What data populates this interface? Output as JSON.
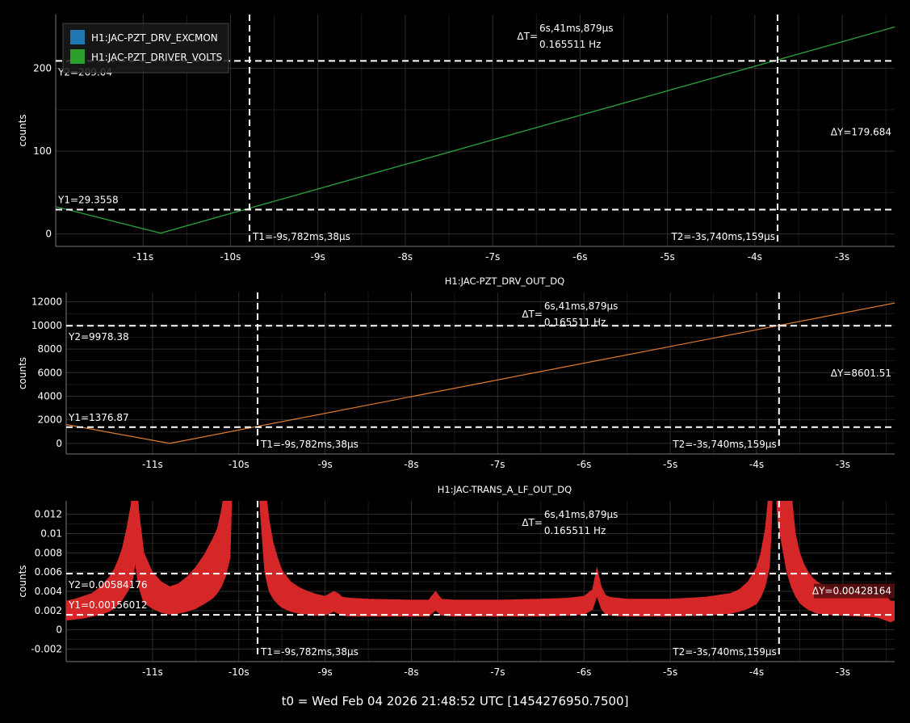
{
  "footer": "t0 = Wed Feb 04 2026 21:48:52 UTC [1454276950.7500]",
  "chart_data": [
    {
      "type": "line",
      "title": "",
      "ylabel": "counts",
      "xlabel": "",
      "xlim": [
        -12.0,
        -2.4
      ],
      "ylim": [
        -15,
        265
      ],
      "xticks": [
        -11,
        -10,
        -9,
        -8,
        -7,
        -6,
        -5,
        -4,
        -3
      ],
      "xtick_labels": [
        "-11s",
        "-10s",
        "-9s",
        "-8s",
        "-7s",
        "-6s",
        "-5s",
        "-4s",
        "-3s"
      ],
      "yticks": [
        0,
        100,
        200
      ],
      "ytick_labels": [
        "0",
        "100",
        "200"
      ],
      "legend": {
        "placement": "top-left",
        "entries": [
          {
            "name": "H1:JAC-PZT_DRV_EXCMON",
            "color": "#1f77b4"
          },
          {
            "name": "H1:JAC-PZT_DRIVER_VOLTS",
            "color": "#2ca02c"
          }
        ]
      },
      "series": [
        {
          "name": "H1:JAC-PZT_DRV_EXCMON",
          "color": "#1f77b4",
          "x": [
            -12.0,
            -10.8,
            -2.4
          ],
          "y": [
            33,
            1,
            250
          ]
        },
        {
          "name": "H1:JAC-PZT_DRIVER_VOLTS",
          "color": "#2ca02c",
          "x": [
            -12.0,
            -10.8,
            -2.4
          ],
          "y": [
            33,
            1,
            250
          ]
        }
      ],
      "cursors": {
        "t1": -9.782,
        "t2": -3.74,
        "y1": 29.3558,
        "y2": 209.04,
        "t1_label": "T1=-9s,782ms,38µs",
        "t2_label": "T2=-3s,740ms,159µs",
        "y1_label": "Y1=29.3558",
        "y2_label": "Y2=209.04",
        "dy_label": "ΔY=179.684",
        "dt_prefix": "ΔT=",
        "dt_label": "6s,41ms,879µs",
        "freq_label": "0.165511 Hz"
      }
    },
    {
      "type": "line",
      "title": "H1:JAC-PZT_DRV_OUT_DQ",
      "ylabel": "counts",
      "xlabel": "",
      "xlim": [
        -12.0,
        -2.4
      ],
      "ylim": [
        -900,
        12800
      ],
      "xticks": [
        -11,
        -10,
        -9,
        -8,
        -7,
        -6,
        -5,
        -4,
        -3
      ],
      "xtick_labels": [
        "-11s",
        "-10s",
        "-9s",
        "-8s",
        "-7s",
        "-6s",
        "-5s",
        "-4s",
        "-3s"
      ],
      "yticks": [
        0,
        2000,
        4000,
        6000,
        8000,
        10000,
        12000
      ],
      "ytick_labels": [
        "0",
        "2000",
        "4000",
        "6000",
        "8000",
        "10000",
        "12000"
      ],
      "series": [
        {
          "name": "H1:JAC-PZT_DRV_OUT_DQ",
          "color": "#e07a2e",
          "x": [
            -12.0,
            -10.8,
            -2.4
          ],
          "y": [
            1600,
            0,
            11900
          ]
        }
      ],
      "cursors": {
        "t1": -9.782,
        "t2": -3.74,
        "y1": 1376.87,
        "y2": 9978.38,
        "t1_label": "T1=-9s,782ms,38µs",
        "t2_label": "T2=-3s,740ms,159µs",
        "y1_label": "Y1=1376.87",
        "y2_label": "Y2=9978.38",
        "dy_label": "ΔY=8601.51",
        "dt_prefix": "ΔT=",
        "dt_label": "6s,41ms,879µs",
        "freq_label": "0.165511 Hz"
      }
    },
    {
      "type": "area",
      "title": "H1:JAC-TRANS_A_LF_OUT_DQ",
      "ylabel": "counts",
      "xlabel": "",
      "xlim": [
        -12.0,
        -2.4
      ],
      "ylim": [
        -0.0033,
        0.0134
      ],
      "xticks": [
        -11,
        -10,
        -9,
        -8,
        -7,
        -6,
        -5,
        -4,
        -3
      ],
      "xtick_labels": [
        "-11s",
        "-10s",
        "-9s",
        "-8s",
        "-7s",
        "-6s",
        "-5s",
        "-4s",
        "-3s"
      ],
      "yticks": [
        -0.002,
        0,
        0.002,
        0.004,
        0.006,
        0.008,
        0.01,
        0.012
      ],
      "ytick_labels": [
        "-0.002",
        "0",
        "0.002",
        "0.004",
        "0.006",
        "0.008",
        "0.01",
        "0.012"
      ],
      "series": [
        {
          "name": "H1:JAC-TRANS_A_LF_OUT_DQ",
          "color": "#d62728",
          "x": [
            -12.0,
            -11.9,
            -11.8,
            -11.7,
            -11.6,
            -11.5,
            -11.45,
            -11.4,
            -11.35,
            -11.3,
            -11.25,
            -11.22,
            -11.2,
            -11.18,
            -11.16,
            -11.12,
            -11.1,
            -11.0,
            -10.9,
            -10.8,
            -10.7,
            -10.6,
            -10.5,
            -10.4,
            -10.3,
            -10.25,
            -10.2,
            -10.15,
            -10.1,
            -10.08,
            -10.05,
            -9.9,
            -9.8,
            -9.75,
            -9.7,
            -9.65,
            -9.6,
            -9.55,
            -9.5,
            -9.4,
            -9.3,
            -9.2,
            -9.1,
            -9.0,
            -8.9,
            -8.85,
            -8.8,
            -8.7,
            -8.5,
            -8.0,
            -7.8,
            -7.72,
            -7.65,
            -7.5,
            -7.0,
            -6.5,
            -6.2,
            -6.0,
            -5.9,
            -5.85,
            -5.8,
            -5.75,
            -5.7,
            -5.5,
            -5.0,
            -4.6,
            -4.3,
            -4.2,
            -4.1,
            -4.0,
            -3.95,
            -3.9,
            -3.85,
            -3.83,
            -3.81,
            -3.8,
            -3.79,
            -3.75,
            -3.65,
            -3.6,
            -3.55,
            -3.5,
            -3.45,
            -3.4,
            -3.35,
            -3.3,
            -3.2,
            -3.0,
            -2.8,
            -2.6,
            -2.5,
            -2.45,
            -2.4
          ],
          "upper": [
            0.003,
            0.0032,
            0.0035,
            0.0038,
            0.0045,
            0.0055,
            0.0062,
            0.0072,
            0.0085,
            0.0105,
            0.013,
            0.016,
            0.02,
            0.016,
            0.0125,
            0.0095,
            0.008,
            0.006,
            0.005,
            0.0045,
            0.0048,
            0.0055,
            0.0065,
            0.0078,
            0.0095,
            0.0105,
            0.0125,
            0.0155,
            0.02,
            0.02,
            0.02,
            0.02,
            0.02,
            0.02,
            0.0155,
            0.0115,
            0.009,
            0.0075,
            0.0062,
            0.005,
            0.0044,
            0.004,
            0.0037,
            0.0035,
            0.004,
            0.0038,
            0.0034,
            0.0033,
            0.0032,
            0.0031,
            0.0031,
            0.004,
            0.0032,
            0.0031,
            0.0031,
            0.0032,
            0.0033,
            0.0035,
            0.0042,
            0.0065,
            0.0045,
            0.0036,
            0.0034,
            0.0032,
            0.0032,
            0.0034,
            0.0038,
            0.0042,
            0.005,
            0.0065,
            0.008,
            0.0105,
            0.015,
            0.02,
            0.02,
            0.02,
            0.02,
            0.02,
            0.02,
            0.0145,
            0.01,
            0.008,
            0.0068,
            0.006,
            0.0054,
            0.005,
            0.0045,
            0.004,
            0.0038,
            0.0036,
            0.0036,
            0.003,
            0.003
          ],
          "lower": [
            0.001,
            0.0011,
            0.0012,
            0.0014,
            0.0016,
            0.0019,
            0.0022,
            0.0026,
            0.0031,
            0.0038,
            0.0046,
            0.0056,
            0.007,
            0.0056,
            0.0045,
            0.0033,
            0.0028,
            0.0022,
            0.0018,
            0.0016,
            0.0017,
            0.0019,
            0.0022,
            0.0027,
            0.0033,
            0.0038,
            0.0045,
            0.0056,
            0.0075,
            0.014,
            0.02,
            0.02,
            0.02,
            0.012,
            0.006,
            0.004,
            0.0032,
            0.0027,
            0.0023,
            0.0019,
            0.0017,
            0.0016,
            0.0015,
            0.0015,
            0.0019,
            0.0017,
            0.0015,
            0.0014,
            0.0014,
            0.0014,
            0.0014,
            0.002,
            0.0015,
            0.0014,
            0.0014,
            0.0014,
            0.0015,
            0.0016,
            0.0021,
            0.0035,
            0.0022,
            0.0016,
            0.0015,
            0.0014,
            0.0014,
            0.0015,
            0.0017,
            0.0019,
            0.0022,
            0.0027,
            0.0034,
            0.0045,
            0.0065,
            0.01,
            0.016,
            0.02,
            0.016,
            0.011,
            0.006,
            0.0045,
            0.0035,
            0.0028,
            0.0024,
            0.0021,
            0.0019,
            0.0017,
            0.0016,
            0.0015,
            0.0014,
            0.0013,
            0.001,
            0.0008,
            0.001
          ]
        }
      ],
      "cursors": {
        "t1": -9.782,
        "t2": -3.74,
        "y1": 0.00156012,
        "y2": 0.00584176,
        "t1_label": "T1=-9s,782ms,38µs",
        "t2_label": "T2=-3s,740ms,159µs",
        "y1_label": "Y1=0.00156012",
        "y2_label": "Y2=0.00584176",
        "dy_label": "ΔY=0.00428164",
        "dt_prefix": "ΔT=",
        "dt_label": "6s,41ms,879µs",
        "freq_label": "0.165511 Hz"
      }
    }
  ]
}
